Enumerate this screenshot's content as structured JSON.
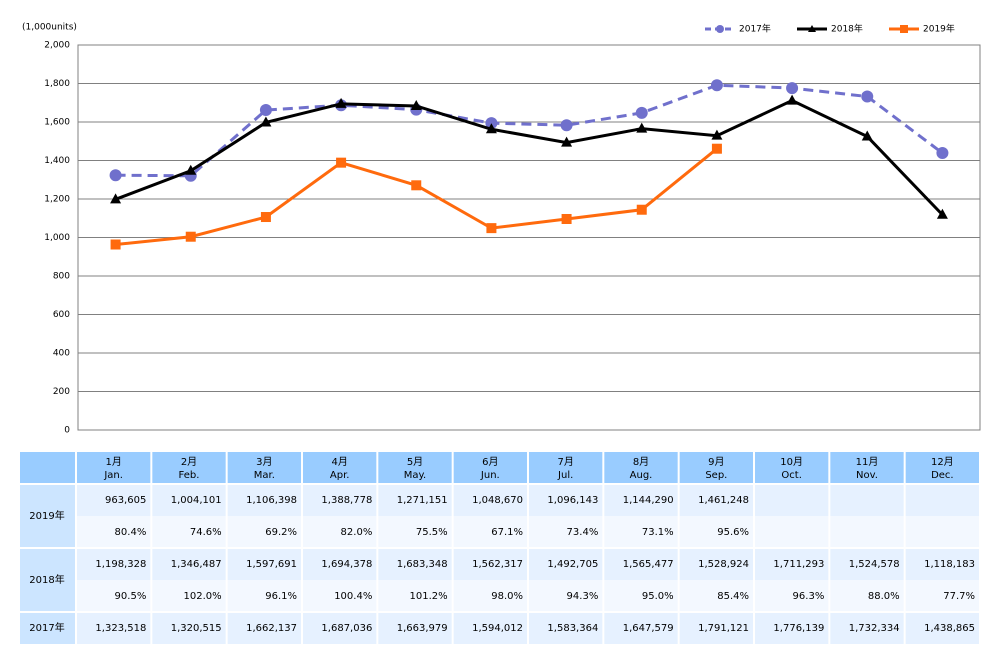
{
  "chart_data": {
    "type": "line",
    "ylabel": "(1,000units)",
    "categories": [
      "1月",
      "2月",
      "3月",
      "4月",
      "5月",
      "6月",
      "7月",
      "8月",
      "9月",
      "10月",
      "11月",
      "12月"
    ],
    "ylim": [
      0,
      2000
    ],
    "yticks": [
      0,
      200,
      400,
      600,
      800,
      {
        "value": 1000,
        "label": "1,000"
      },
      {
        "value": 1200,
        "label": "1,200"
      },
      {
        "value": 1400,
        "label": "1,400"
      },
      {
        "value": 1600,
        "label": "1,600"
      },
      {
        "value": 1800,
        "label": "1,800"
      },
      {
        "value": 2000,
        "label": "2,000"
      }
    ],
    "grid": true,
    "legend": "top-right",
    "series": [
      {
        "name": "2017年",
        "color": "#7070cc",
        "dash": true,
        "marker": "circle",
        "values": [
          1323.518,
          1320.515,
          1662.137,
          1687.036,
          1663.979,
          1594.012,
          1583.364,
          1647.579,
          1791.121,
          1776.139,
          1732.334,
          1438.865
        ]
      },
      {
        "name": "2018年",
        "color": "#000000",
        "dash": false,
        "marker": "triangle",
        "values": [
          1198.328,
          1346.487,
          1597.691,
          1694.378,
          1683.348,
          1562.317,
          1492.705,
          1565.477,
          1528.924,
          1711.293,
          1524.578,
          1118.183
        ]
      },
      {
        "name": "2019年",
        "color": "#ff6a0d",
        "dash": false,
        "marker": "square",
        "values": [
          963.605,
          1004.101,
          1106.398,
          1388.778,
          1271.151,
          1048.67,
          1096.143,
          1144.29,
          1461.248,
          null,
          null,
          null
        ]
      }
    ]
  },
  "table": {
    "months_en": [
      "Jan.",
      "Feb.",
      "Mar.",
      "Apr.",
      "May.",
      "Jun.",
      "Jul.",
      "Aug.",
      "Sep.",
      "Oct.",
      "Nov.",
      "Dec."
    ],
    "rows": [
      {
        "label": "2019年",
        "units": [
          "963,605",
          "1,004,101",
          "1,106,398",
          "1,388,778",
          "1,271,151",
          "1,048,670",
          "1,096,143",
          "1,144,290",
          "1,461,248"
        ],
        "ratios": [
          "80.4%",
          "74.6%",
          "69.2%",
          "82.0%",
          "75.5%",
          "67.1%",
          "73.4%",
          "73.1%",
          "95.6%"
        ]
      },
      {
        "label": "2018年",
        "units": [
          "1,198,328",
          "1,346,487",
          "1,597,691",
          "1,694,378",
          "1,683,348",
          "1,562,317",
          "1,492,705",
          "1,565,477",
          "1,528,924",
          "1,711,293",
          "1,524,578",
          "1,118,183"
        ],
        "ratios": [
          "90.5%",
          "102.0%",
          "96.1%",
          "100.4%",
          "101.2%",
          "98.0%",
          "94.3%",
          "95.0%",
          "85.4%",
          "96.3%",
          "88.0%",
          "77.7%"
        ]
      },
      {
        "label": "2017年",
        "units": [
          "1,323,518",
          "1,320,515",
          "1,662,137",
          "1,687,036",
          "1,663,979",
          "1,594,012",
          "1,583,364",
          "1,647,579",
          "1,791,121",
          "1,776,139",
          "1,732,334",
          "1,438,865"
        ]
      }
    ]
  }
}
